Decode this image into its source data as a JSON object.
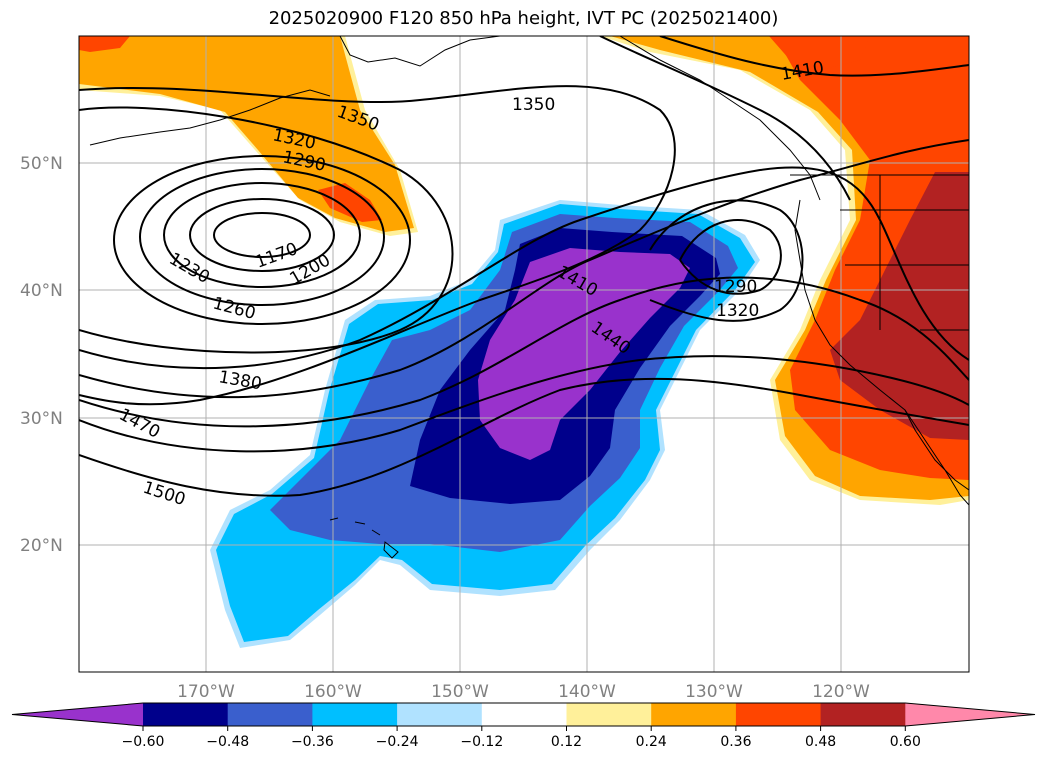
{
  "title": "2025020900 F120 850 hPa height, IVT PC (2025021400)",
  "latitudes": [
    "50°N",
    "40°N",
    "30°N",
    "20°N"
  ],
  "longitudes": [
    "170°W",
    "160°W",
    "150°W",
    "140°W",
    "130°W",
    "120°W"
  ],
  "contour_labels": [
    {
      "value": "1350",
      "where": "north-central"
    },
    {
      "value": "1350",
      "where": "gulf of alaska"
    },
    {
      "value": "1410",
      "where": "northeast"
    },
    {
      "value": "1320",
      "where": "bering"
    },
    {
      "value": "1290",
      "where": "bering"
    },
    {
      "value": "1170",
      "where": "low center"
    },
    {
      "value": "1200",
      "where": "low"
    },
    {
      "value": "1230",
      "where": "low"
    },
    {
      "value": "1260",
      "where": "low"
    },
    {
      "value": "1410",
      "where": "central"
    },
    {
      "value": "1440",
      "where": "central"
    },
    {
      "value": "1290",
      "where": "east"
    },
    {
      "value": "1320",
      "where": "east"
    },
    {
      "value": "1380",
      "where": "west"
    },
    {
      "value": "1470",
      "where": "west"
    },
    {
      "value": "1500",
      "where": "southwest"
    }
  ],
  "colorbar": {
    "ticks": [
      "−0.60",
      "−0.48",
      "−0.36",
      "−0.24",
      "−0.12",
      "0.12",
      "0.24",
      "0.36",
      "0.48",
      "0.60"
    ],
    "colors": [
      "#9932cc",
      "#00008b",
      "#3a5fcd",
      "#00bfff",
      "#b0e2ff",
      "#ffffff",
      "#fff09a",
      "#ffa500",
      "#ff4500",
      "#b22222",
      "#ff88aa"
    ]
  }
}
